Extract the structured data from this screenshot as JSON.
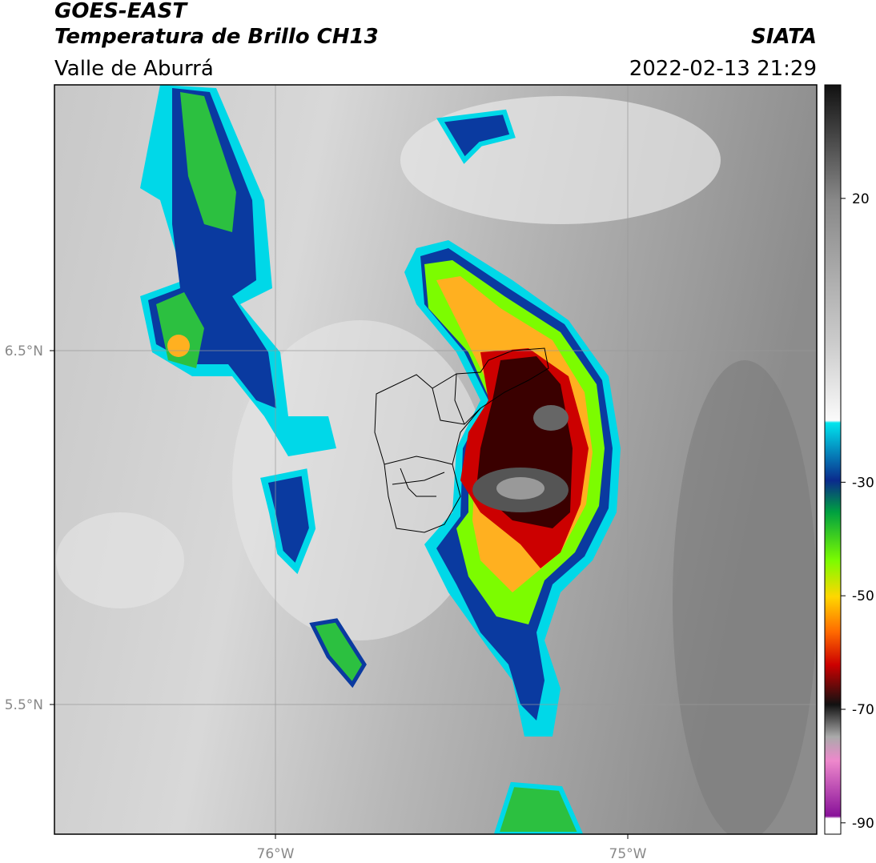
{
  "header": {
    "title": "GOES-EAST",
    "subtitle": "Temperatura de Brillo CH13",
    "region": "Valle de Aburrá",
    "source": "SIATA",
    "datetime": "2022-02-13 21:29"
  },
  "map": {
    "lat_labels": [
      "6.5°N",
      "5.5°N"
    ],
    "lon_labels": [
      "76°W",
      "75°W"
    ]
  },
  "colorbar": {
    "range": [
      -92,
      40
    ],
    "ticks": [
      20,
      -30,
      -50,
      -70,
      -90
    ]
  }
}
